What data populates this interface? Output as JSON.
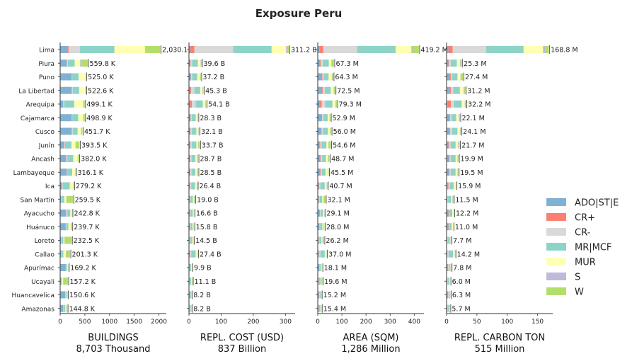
{
  "chart_data": {
    "type": "bar",
    "title": "Exposure Peru",
    "legend_position": "right",
    "regions": [
      "Lima",
      "Piura",
      "Puno",
      "La Libertad",
      "Arequipa",
      "Cajamarca",
      "Cusco",
      "Junín",
      "Ancash",
      "Lambayeque",
      "Ica",
      "San Martín",
      "Ayacucho",
      "Huánuco",
      "Loreto",
      "Callao",
      "Apurímac",
      "Ucayali",
      "Huancavelica",
      "Amazonas"
    ],
    "series": [
      {
        "name": "ADO|ST|E",
        "color": "#80b1d3"
      },
      {
        "name": "CR+",
        "color": "#fb8072"
      },
      {
        "name": "CR-",
        "color": "#d9d9d9"
      },
      {
        "name": "MR|MCF",
        "color": "#8dd3c7"
      },
      {
        "name": "MUR",
        "color": "#ffffb3"
      },
      {
        "name": "S",
        "color": "#bebada"
      },
      {
        "name": "W",
        "color": "#b3de69"
      }
    ],
    "panels": [
      {
        "xlabel": "BUILDINGS",
        "total_label": "8,703 Thousand",
        "xlim": [
          0,
          2150
        ],
        "ticks": [
          0,
          500,
          1000,
          1500,
          2000
        ],
        "totals": [
          2030.1,
          559.8,
          525.0,
          522.6,
          499.1,
          498.9,
          451.7,
          393.5,
          382.0,
          316.1,
          279.2,
          259.5,
          242.8,
          239.7,
          232.5,
          201.3,
          169.2,
          157.2,
          150.6,
          144.8
        ],
        "value_labels": [
          "2,030.1 K",
          "559.8 K",
          "525.0 K",
          "522.6 K",
          "499.1 K",
          "498.9 K",
          "451.7 K",
          "393.5 K",
          "382.0 K",
          "316.1 K",
          "279.2 K",
          "259.5 K",
          "242.8 K",
          "239.7 K",
          "232.5 K",
          "201.3 K",
          "169.2 K",
          "157.2 K",
          "150.6 K",
          "144.8 K"
        ],
        "stacks": [
          [
            160,
            15,
            225,
            700,
            620,
            10,
            300
          ],
          [
            130,
            5,
            20,
            140,
            110,
            15,
            140
          ],
          [
            230,
            5,
            10,
            130,
            140,
            5,
            5
          ],
          [
            230,
            5,
            20,
            130,
            120,
            5,
            12
          ],
          [
            60,
            5,
            20,
            200,
            180,
            5,
            29
          ],
          [
            230,
            5,
            10,
            120,
            100,
            5,
            29
          ],
          [
            230,
            5,
            20,
            100,
            70,
            5,
            22
          ],
          [
            80,
            5,
            15,
            130,
            80,
            5,
            78
          ],
          [
            120,
            5,
            20,
            120,
            90,
            5,
            22
          ],
          [
            130,
            5,
            10,
            100,
            60,
            5,
            6
          ],
          [
            40,
            5,
            10,
            140,
            70,
            5,
            9
          ],
          [
            20,
            5,
            10,
            50,
            40,
            5,
            130
          ],
          [
            120,
            5,
            20,
            60,
            30,
            5,
            3
          ],
          [
            110,
            5,
            10,
            40,
            50,
            5,
            20
          ],
          [
            20,
            5,
            10,
            30,
            20,
            5,
            142
          ],
          [
            20,
            5,
            10,
            30,
            50,
            5,
            81
          ],
          [
            110,
            5,
            5,
            20,
            20,
            5,
            4
          ],
          [
            20,
            5,
            5,
            10,
            20,
            5,
            92
          ],
          [
            100,
            5,
            10,
            20,
            10,
            5,
            1
          ],
          [
            60,
            5,
            10,
            30,
            20,
            5,
            15
          ]
        ]
      },
      {
        "xlabel": "REPL. COST (USD)",
        "total_label": "837 Billion",
        "xlim": [
          0,
          330
        ],
        "ticks": [
          0,
          100,
          200,
          300
        ],
        "totals": [
          311.2,
          39.6,
          37.2,
          45.3,
          54.1,
          28.3,
          32.1,
          33.7,
          28.7,
          28.5,
          26.4,
          19.0,
          16.6,
          15.8,
          14.5,
          27.4,
          9.9,
          11.1,
          8.2,
          8.2
        ],
        "value_labels": [
          "311.2 B",
          "39.6 B",
          "37.2 B",
          "45.3 B",
          "54.1 B",
          "28.3 B",
          "32.1 B",
          "33.7 B",
          "28.7 B",
          "28.5 B",
          "26.4 B",
          "19.0 B",
          "16.6 B",
          "15.8 B",
          "14.5 B",
          "27.4 B",
          "9.9 B",
          "11.1 B",
          "8.2 B",
          "8.2 B"
        ],
        "stacks": [
          [
            4,
            13,
            120,
            120,
            45,
            4,
            5.2
          ],
          [
            3,
            2,
            5,
            18,
            8,
            1,
            2.6
          ],
          [
            6,
            1,
            3,
            16,
            8,
            1,
            2.2
          ],
          [
            4,
            3,
            10,
            18,
            7,
            1,
            2.3
          ],
          [
            3,
            6,
            12,
            22,
            8,
            1,
            2.1
          ],
          [
            5,
            1,
            3,
            12,
            5,
            1,
            1.3
          ],
          [
            4,
            1,
            4,
            14,
            6,
            1,
            2.1
          ],
          [
            3,
            1,
            5,
            14,
            5,
            1,
            4.7
          ],
          [
            3,
            1,
            4,
            12,
            5,
            1,
            2.7
          ],
          [
            3,
            1,
            4,
            12,
            5,
            1,
            2.5
          ],
          [
            2,
            1,
            4,
            12,
            5,
            1,
            1.4
          ],
          [
            2,
            1,
            2,
            7,
            3,
            1,
            3.0
          ],
          [
            2,
            1,
            2,
            7,
            3,
            1,
            0.6
          ],
          [
            2,
            1,
            2,
            6,
            3,
            1,
            0.8
          ],
          [
            1,
            1,
            2,
            5,
            2,
            1,
            2.5
          ],
          [
            2,
            1,
            4,
            14,
            5,
            1,
            0.4
          ],
          [
            2,
            0.5,
            1,
            3,
            2,
            0.5,
            0.9
          ],
          [
            1,
            0.5,
            1,
            4,
            2,
            0.5,
            2.1
          ],
          [
            2,
            0.5,
            1,
            3,
            1,
            0.5,
            0.2
          ],
          [
            1,
            0.5,
            1,
            3,
            1,
            0.5,
            1.2
          ]
        ]
      },
      {
        "xlabel": "AREA (SQM)",
        "total_label": "1,286 Million",
        "xlim": [
          0,
          440
        ],
        "ticks": [
          0,
          100,
          200,
          300,
          400
        ],
        "totals": [
          419.2,
          67.3,
          64.3,
          72.5,
          79.3,
          52.9,
          56.0,
          54.6,
          48.7,
          45.5,
          40.7,
          32.1,
          29.1,
          28.0,
          26.2,
          37.0,
          18.1,
          19.6,
          15.2,
          15.4
        ],
        "value_labels": [
          "419.2 M",
          "67.3 M",
          "64.3 M",
          "72.5 M",
          "79.3 M",
          "52.9 M",
          "56.0 M",
          "54.6 M",
          "48.7 M",
          "45.5 M",
          "40.7 M",
          "32.1 M",
          "29.1 M",
          "28.0 M",
          "26.2 M",
          "37.0 M",
          "18.1 M",
          "19.6 M",
          "15.2 M",
          "15.4 M"
        ],
        "stacks": [
          [
            8,
            15,
            140,
            160,
            65,
            5,
            26.2
          ],
          [
            10,
            3,
            8,
            25,
            10,
            2,
            9.3
          ],
          [
            18,
            2,
            5,
            20,
            13,
            2,
            4.3
          ],
          [
            18,
            3,
            8,
            25,
            12,
            2,
            4.5
          ],
          [
            6,
            10,
            15,
            30,
            12,
            2,
            4.3
          ],
          [
            16,
            2,
            5,
            18,
            8,
            1,
            2.9
          ],
          [
            14,
            2,
            6,
            20,
            9,
            1,
            4.0
          ],
          [
            8,
            2,
            6,
            20,
            8,
            1,
            9.6
          ],
          [
            10,
            2,
            6,
            16,
            8,
            1,
            5.7
          ],
          [
            10,
            2,
            5,
            16,
            8,
            1,
            3.5
          ],
          [
            4,
            2,
            5,
            18,
            8,
            1,
            2.7
          ],
          [
            4,
            1,
            3,
            10,
            5,
            1,
            8.1
          ],
          [
            8,
            1,
            3,
            10,
            5,
            1,
            1.1
          ],
          [
            6,
            1,
            3,
            9,
            5,
            1,
            3.0
          ],
          [
            3,
            1,
            3,
            8,
            4,
            1,
            6.2
          ],
          [
            4,
            1,
            6,
            18,
            6,
            1,
            1.0
          ],
          [
            6,
            1,
            2,
            4,
            3,
            1,
            1.1
          ],
          [
            3,
            1,
            2,
            6,
            3,
            1,
            3.6
          ],
          [
            5,
            1,
            2,
            4,
            2,
            1,
            0.2
          ],
          [
            3,
            1,
            2,
            5,
            2,
            1,
            1.4
          ]
        ]
      },
      {
        "xlabel": "REPL. CARBON TON",
        "total_label": "515 Million",
        "xlim": [
          0,
          175
        ],
        "ticks": [
          0,
          50,
          100,
          150
        ],
        "totals": [
          168.8,
          25.3,
          27.4,
          31.2,
          32.2,
          22.1,
          24.1,
          21.7,
          19.9,
          19.5,
          15.9,
          11.5,
          12.2,
          11.0,
          7.7,
          14.2,
          7.8,
          6.0,
          6.3,
          5.7
        ],
        "value_labels": [
          "168.8 M",
          "25.3 M",
          "27.4 M",
          "31.2 M",
          "32.2 M",
          "22.1 M",
          "24.1 M",
          "21.7 M",
          "19.9 M",
          "19.5 M",
          "15.9 M",
          "11.5 M",
          "12.2 M",
          "11.0 M",
          "7.7 M",
          "14.2 M",
          "7.8 M",
          "6.0 M",
          "6.3 M",
          "5.7 M"
        ],
        "stacks": [
          [
            3,
            7,
            55,
            62,
            32,
            4,
            5.8
          ],
          [
            3,
            1,
            3,
            10,
            5,
            1,
            2.3
          ],
          [
            6,
            1,
            2,
            9,
            5,
            1,
            3.4
          ],
          [
            5,
            2,
            4,
            11,
            6,
            1,
            2.2
          ],
          [
            2,
            5,
            5,
            13,
            5,
            1,
            1.2
          ],
          [
            5,
            1,
            2,
            8,
            4,
            1,
            1.1
          ],
          [
            5,
            1,
            3,
            9,
            4,
            1,
            1.1
          ],
          [
            3,
            1,
            3,
            8,
            4,
            1,
            1.7
          ],
          [
            4,
            1,
            2,
            8,
            3,
            1,
            0.9
          ],
          [
            4,
            1,
            2,
            8,
            3,
            1,
            0.5
          ],
          [
            2,
            1,
            2,
            7,
            3,
            0.5,
            0.4
          ],
          [
            1,
            0.5,
            1,
            5,
            2,
            0.5,
            1.5
          ],
          [
            3,
            0.5,
            1,
            5,
            2,
            0.5,
            0.2
          ],
          [
            3,
            0.5,
            1,
            4,
            2,
            0.5,
            0
          ],
          [
            1,
            0.5,
            1,
            3,
            1,
            0.5,
            0.7
          ],
          [
            1,
            0.5,
            2,
            7,
            3,
            0.5,
            0.2
          ],
          [
            2,
            0.5,
            1,
            2,
            1,
            0.5,
            0.8
          ],
          [
            1,
            0.5,
            1,
            2,
            1,
            0.5,
            0
          ],
          [
            2,
            0.5,
            1,
            2,
            0.5,
            0.3,
            0
          ],
          [
            1,
            0.5,
            1,
            2,
            0.5,
            0.3,
            0.4
          ]
        ]
      }
    ]
  }
}
